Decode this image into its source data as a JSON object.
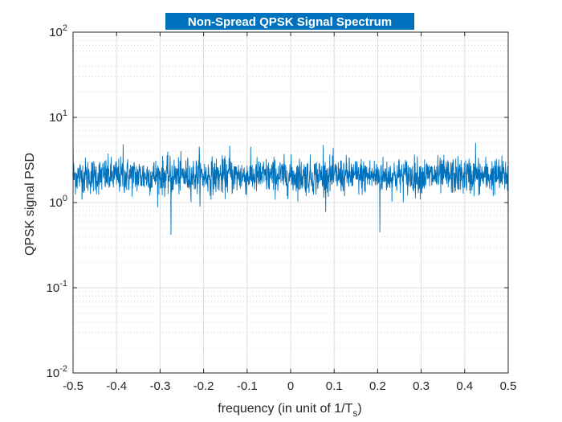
{
  "chart_data": {
    "type": "line",
    "title": "Non-Spread QPSK Signal Spectrum",
    "xlabel": "frequency (in unit of 1/T",
    "xlabel_subscript": "s",
    "xlabel_suffix": ")",
    "ylabel": "QPSK signal PSD",
    "xlim": [
      -0.5,
      0.5
    ],
    "ylim": [
      0.01,
      100
    ],
    "y_scale": "log",
    "grid": true,
    "minor_grid": true,
    "x_ticks": [
      -0.5,
      -0.4,
      -0.3,
      -0.2,
      -0.1,
      0,
      0.1,
      0.2,
      0.3,
      0.4,
      0.5
    ],
    "x_tick_labels": [
      "-0.5",
      "-0.4",
      "-0.3",
      "-0.2",
      "-0.1",
      "0",
      "0.1",
      "0.2",
      "0.3",
      "0.4",
      "0.5"
    ],
    "y_ticks": [
      {
        "value": 0.01,
        "base": "10",
        "exp": "-2"
      },
      {
        "value": 0.1,
        "base": "10",
        "exp": "-1"
      },
      {
        "value": 1,
        "base": "10",
        "exp": "0"
      },
      {
        "value": 10,
        "base": "10",
        "exp": "1"
      },
      {
        "value": 100,
        "base": "10",
        "exp": "2"
      }
    ],
    "series": [
      {
        "color": "#0072bd",
        "typical_range": [
          1.2,
          3.5
        ],
        "peak_max": 5.0,
        "dip_min": 0.42,
        "notable_points": [
          {
            "x": -0.5,
            "y": 5.0
          },
          {
            "x": -0.385,
            "y": 4.8
          },
          {
            "x": -0.275,
            "y": 0.42
          },
          {
            "x": -0.21,
            "y": 4.5
          },
          {
            "x": -0.14,
            "y": 4.6
          },
          {
            "x": 0.075,
            "y": 4.7
          },
          {
            "x": 0.205,
            "y": 0.45
          },
          {
            "x": 0.425,
            "y": 5.0
          },
          {
            "x": 0.5,
            "y": 0.6
          }
        ]
      }
    ]
  },
  "colors": {
    "title_background": "#0072bd",
    "title_text": "#ffffff",
    "grid": "#dcdcdc",
    "axis": "#262626",
    "line": "#0072bd"
  }
}
